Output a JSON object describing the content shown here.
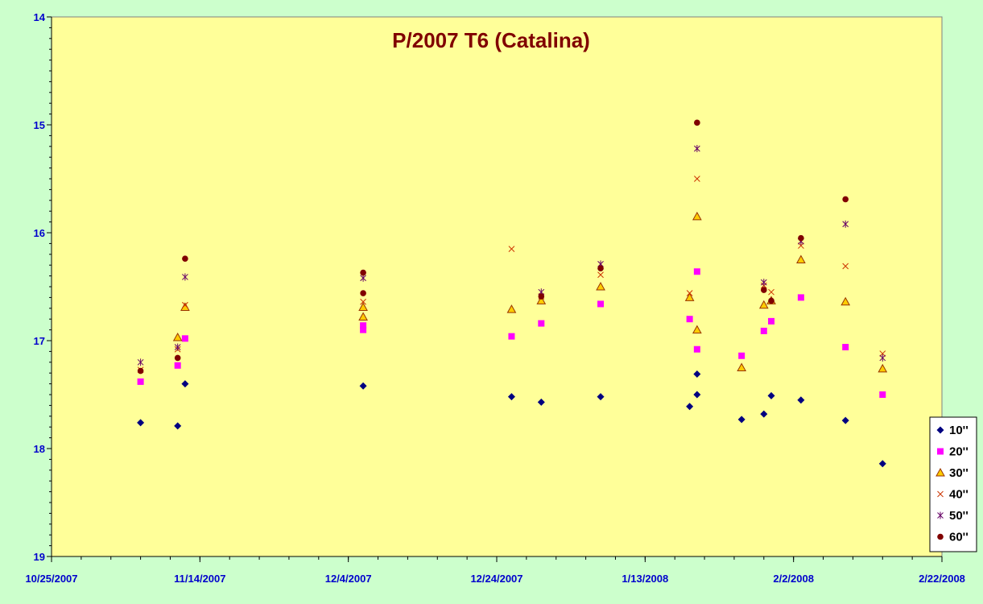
{
  "chart_data": {
    "type": "scatter",
    "title": "P/2007 T6 (Catalina)",
    "xlabel": "",
    "ylabel": "",
    "x_axis": {
      "type": "date",
      "min": "2007-10-25",
      "max": "2008-02-22",
      "major_ticks": [
        "10/25/2007",
        "11/14/2007",
        "12/4/2007",
        "12/24/2007",
        "1/13/2008",
        "2/2/2008",
        "2/22/2008"
      ],
      "minor_tick_days": 4
    },
    "y_axis": {
      "min": 14,
      "max": 19,
      "reversed": true,
      "major_ticks": [
        "14",
        "15",
        "16",
        "17",
        "18",
        "19"
      ],
      "minor_step": 0.1
    },
    "grid": false,
    "legend_position": "bottom-right",
    "colors": {
      "page_background": "#ccffcc",
      "plot_background": "#ffff99",
      "title": "#800000",
      "tick_labels": "#0000cc"
    },
    "series": [
      {
        "name": "10''",
        "marker": "diamond",
        "color": "#000080",
        "points": [
          {
            "x": "2007-11-06",
            "y": 17.76
          },
          {
            "x": "2007-11-11",
            "y": 17.79
          },
          {
            "x": "2007-11-12",
            "y": 17.4
          },
          {
            "x": "2007-12-06",
            "y": 17.42
          },
          {
            "x": "2007-12-26",
            "y": 17.52
          },
          {
            "x": "2007-12-30",
            "y": 17.57
          },
          {
            "x": "2008-01-07",
            "y": 17.52
          },
          {
            "x": "2008-01-19",
            "y": 17.61
          },
          {
            "x": "2008-01-20",
            "y": 17.5
          },
          {
            "x": "2008-01-20",
            "y": 17.31
          },
          {
            "x": "2008-01-26",
            "y": 17.73
          },
          {
            "x": "2008-01-29",
            "y": 17.68
          },
          {
            "x": "2008-01-30",
            "y": 17.51
          },
          {
            "x": "2008-02-03",
            "y": 17.55
          },
          {
            "x": "2008-02-09",
            "y": 17.74
          },
          {
            "x": "2008-02-14",
            "y": 18.14
          }
        ]
      },
      {
        "name": "20''",
        "marker": "square",
        "color": "#ff00ff",
        "points": [
          {
            "x": "2007-11-06",
            "y": 17.38
          },
          {
            "x": "2007-11-11",
            "y": 17.23
          },
          {
            "x": "2007-11-12",
            "y": 16.98
          },
          {
            "x": "2007-12-06",
            "y": 16.9
          },
          {
            "x": "2007-12-06",
            "y": 16.86
          },
          {
            "x": "2007-12-26",
            "y": 16.96
          },
          {
            "x": "2007-12-30",
            "y": 16.84
          },
          {
            "x": "2008-01-07",
            "y": 16.66
          },
          {
            "x": "2008-01-19",
            "y": 16.8
          },
          {
            "x": "2008-01-20",
            "y": 17.08
          },
          {
            "x": "2008-01-20",
            "y": 16.36
          },
          {
            "x": "2008-01-26",
            "y": 17.14
          },
          {
            "x": "2008-01-29",
            "y": 16.91
          },
          {
            "x": "2008-01-30",
            "y": 16.82
          },
          {
            "x": "2008-02-03",
            "y": 16.6
          },
          {
            "x": "2008-02-09",
            "y": 17.06
          },
          {
            "x": "2008-02-14",
            "y": 17.5
          }
        ]
      },
      {
        "name": "30''",
        "marker": "triangle",
        "color": "#ffcc00",
        "points": [
          {
            "x": "2007-11-11",
            "y": 16.97
          },
          {
            "x": "2007-11-12",
            "y": 16.69
          },
          {
            "x": "2007-12-06",
            "y": 16.78
          },
          {
            "x": "2007-12-06",
            "y": 16.69
          },
          {
            "x": "2007-12-26",
            "y": 16.71
          },
          {
            "x": "2007-12-30",
            "y": 16.63
          },
          {
            "x": "2008-01-07",
            "y": 16.5
          },
          {
            "x": "2008-01-19",
            "y": 16.6
          },
          {
            "x": "2008-01-20",
            "y": 16.9
          },
          {
            "x": "2008-01-20",
            "y": 15.85
          },
          {
            "x": "2008-01-26",
            "y": 17.25
          },
          {
            "x": "2008-01-29",
            "y": 16.67
          },
          {
            "x": "2008-01-30",
            "y": 16.63
          },
          {
            "x": "2008-02-03",
            "y": 16.25
          },
          {
            "x": "2008-02-09",
            "y": 16.64
          },
          {
            "x": "2008-02-14",
            "y": 17.26
          }
        ]
      },
      {
        "name": "40''",
        "marker": "x",
        "color": "#cc3300",
        "points": [
          {
            "x": "2007-11-06",
            "y": 17.27
          },
          {
            "x": "2007-11-11",
            "y": 17.08
          },
          {
            "x": "2007-11-12",
            "y": 16.67
          },
          {
            "x": "2007-12-06",
            "y": 16.64
          },
          {
            "x": "2007-12-26",
            "y": 16.15
          },
          {
            "x": "2007-12-30",
            "y": 16.59
          },
          {
            "x": "2008-01-07",
            "y": 16.39
          },
          {
            "x": "2008-01-19",
            "y": 16.56
          },
          {
            "x": "2008-01-20",
            "y": 15.5
          },
          {
            "x": "2008-01-29",
            "y": 16.49
          },
          {
            "x": "2008-01-30",
            "y": 16.55
          },
          {
            "x": "2008-02-03",
            "y": 16.12
          },
          {
            "x": "2008-02-09",
            "y": 16.31
          },
          {
            "x": "2008-02-14",
            "y": 17.12
          }
        ]
      },
      {
        "name": "50''",
        "marker": "asterisk",
        "color": "#660066",
        "points": [
          {
            "x": "2007-11-06",
            "y": 17.2
          },
          {
            "x": "2007-11-11",
            "y": 17.06
          },
          {
            "x": "2007-11-12",
            "y": 16.41
          },
          {
            "x": "2007-12-06",
            "y": 16.42
          },
          {
            "x": "2007-12-30",
            "y": 16.55
          },
          {
            "x": "2008-01-07",
            "y": 16.29
          },
          {
            "x": "2008-01-20",
            "y": 15.22
          },
          {
            "x": "2008-01-29",
            "y": 16.46
          },
          {
            "x": "2008-02-03",
            "y": 16.08
          },
          {
            "x": "2008-02-09",
            "y": 15.92
          },
          {
            "x": "2008-02-14",
            "y": 17.16
          }
        ]
      },
      {
        "name": "60''",
        "marker": "circle",
        "color": "#800000",
        "points": [
          {
            "x": "2007-11-06",
            "y": 17.28
          },
          {
            "x": "2007-11-11",
            "y": 17.16
          },
          {
            "x": "2007-11-12",
            "y": 16.24
          },
          {
            "x": "2007-12-06",
            "y": 16.37
          },
          {
            "x": "2007-12-06",
            "y": 16.56
          },
          {
            "x": "2007-12-30",
            "y": 16.59
          },
          {
            "x": "2008-01-07",
            "y": 16.33
          },
          {
            "x": "2008-01-20",
            "y": 14.98
          },
          {
            "x": "2008-01-29",
            "y": 16.53
          },
          {
            "x": "2008-01-30",
            "y": 16.63
          },
          {
            "x": "2008-02-03",
            "y": 16.05
          },
          {
            "x": "2008-02-09",
            "y": 15.69
          }
        ]
      }
    ]
  }
}
